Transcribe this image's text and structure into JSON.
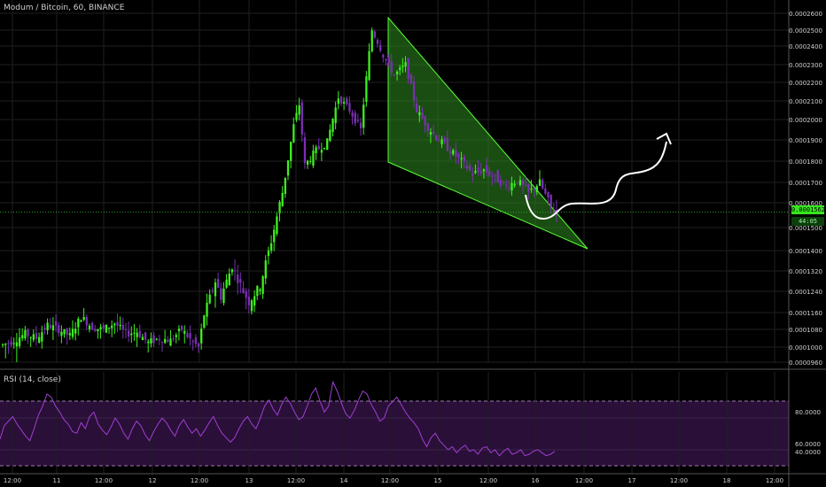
{
  "header": {
    "symbol_title": "Modum / Bitcoin, 60, BINANCE"
  },
  "rsi_panel": {
    "title": "RSI (14, close)"
  },
  "price_badge": {
    "value": "0.0001562",
    "countdown": "44:05"
  },
  "colors": {
    "background": "#000000",
    "grid": "#1f1f1f",
    "bull_candle": "#3ff01f",
    "bear_candle": "#7b2fb4",
    "wedge_fill": "#2f8d1f",
    "wedge_stroke": "#58ff38",
    "rsi_line": "#9f3fd4",
    "rsi_band": "#2a0f38",
    "price_line": "#2ea82e"
  },
  "chart_data": [
    {
      "type": "candlestick",
      "title": "Modum / Bitcoin, 60, BINANCE",
      "x_tick_labels": [
        "12:00",
        "11",
        "12:00",
        "12",
        "12:00",
        "13",
        "12:00",
        "14",
        "12:00",
        "15",
        "12:00",
        "16",
        "12:00",
        "17",
        "12:00",
        "18",
        "12:00"
      ],
      "y_tick_labels": [
        "0.0002600",
        "0.0002500",
        "0.0002400",
        "0.0002300",
        "0.0002200",
        "0.0002100",
        "0.0002000",
        "0.0001900",
        "0.0001800",
        "0.0001700",
        "0.0001600",
        "0.0001500",
        "0.0001400",
        "0.0001320",
        "0.0001240",
        "0.0001160",
        "0.0001080",
        "0.0001000",
        "0.0000960"
      ],
      "ylim": [
        9.6e-05,
        0.00026
      ],
      "last_price": 0.0001562,
      "grid": true,
      "annotations": [
        "falling wedge pattern",
        "projected breakout arrow"
      ],
      "close_path": [
        [
          0,
          0.000101
        ],
        [
          4,
          0.000103
        ],
        [
          8,
          0.000106
        ],
        [
          12,
          0.000104
        ],
        [
          16,
          0.00011
        ],
        [
          20,
          0.000108
        ],
        [
          24,
          0.000105
        ],
        [
          28,
          0.000114
        ],
        [
          32,
          0.000109
        ],
        [
          36,
          0.000108
        ],
        [
          40,
          0.000111
        ],
        [
          44,
          0.000106
        ],
        [
          48,
          0.000107
        ],
        [
          52,
          0.000102
        ],
        [
          56,
          0.000104
        ],
        [
          60,
          0.000103
        ],
        [
          64,
          0.000108
        ],
        [
          68,
          0.000102
        ],
        [
          70,
          0.0001
        ],
        [
          72,
          0.000115
        ],
        [
          76,
          0.000128
        ],
        [
          78,
          0.000122
        ],
        [
          82,
          0.000134
        ],
        [
          86,
          0.000124
        ],
        [
          88,
          0.00012
        ],
        [
          92,
          0.000126
        ],
        [
          96,
          0.000144
        ],
        [
          100,
          0.000165
        ],
        [
          104,
          0.000197
        ],
        [
          106,
          0.000208
        ],
        [
          108,
          0.000178
        ],
        [
          112,
          0.000185
        ],
        [
          116,
          0.000189
        ],
        [
          120,
          0.000212
        ],
        [
          124,
          0.000205
        ],
        [
          128,
          0.000195
        ],
        [
          132,
          0.00025
        ],
        [
          136,
          0.000235
        ],
        [
          140,
          0.000224
        ],
        [
          144,
          0.00023
        ],
        [
          148,
          0.000205
        ],
        [
          152,
          0.000196
        ],
        [
          156,
          0.00019
        ],
        [
          160,
          0.000185
        ],
        [
          164,
          0.00018
        ],
        [
          168,
          0.000174
        ],
        [
          172,
          0.000176
        ],
        [
          176,
          0.000172
        ],
        [
          180,
          0.000168
        ],
        [
          184,
          0.000171
        ],
        [
          188,
          0.000165
        ],
        [
          192,
          0.00017
        ],
        [
          196,
          0.000158
        ],
        [
          198,
          0.000156
        ]
      ]
    },
    {
      "type": "line",
      "title": "RSI (14, close)",
      "y_tick_labels": [
        "80.0000",
        "60.0000",
        "40.0000"
      ],
      "ylim": [
        28,
        88
      ],
      "upper_band": 70,
      "lower_band": 30,
      "values": [
        48,
        57,
        60,
        63,
        58,
        54,
        50,
        47,
        55,
        64,
        70,
        78,
        76,
        70,
        66,
        61,
        58,
        53,
        52,
        59,
        55,
        63,
        66,
        58,
        54,
        51,
        56,
        62,
        58,
        52,
        48,
        55,
        60,
        57,
        51,
        47,
        53,
        58,
        62,
        59,
        54,
        50,
        57,
        61,
        56,
        52,
        55,
        50,
        54,
        59,
        63,
        57,
        52,
        49,
        46,
        49,
        55,
        60,
        63,
        58,
        55,
        62,
        70,
        74,
        68,
        64,
        71,
        76,
        72,
        66,
        61,
        63,
        70,
        78,
        82,
        73,
        66,
        70,
        86,
        80,
        72,
        65,
        62,
        67,
        74,
        80,
        78,
        71,
        66,
        60,
        62,
        70,
        73,
        76,
        71,
        66,
        62,
        59,
        55,
        48,
        43,
        49,
        52,
        47,
        44,
        41,
        43,
        39,
        42,
        44,
        40,
        41,
        38,
        42,
        43,
        39,
        41,
        37,
        40,
        42,
        38,
        39,
        41,
        37,
        38,
        40,
        41,
        39,
        37,
        38,
        40
      ]
    }
  ]
}
